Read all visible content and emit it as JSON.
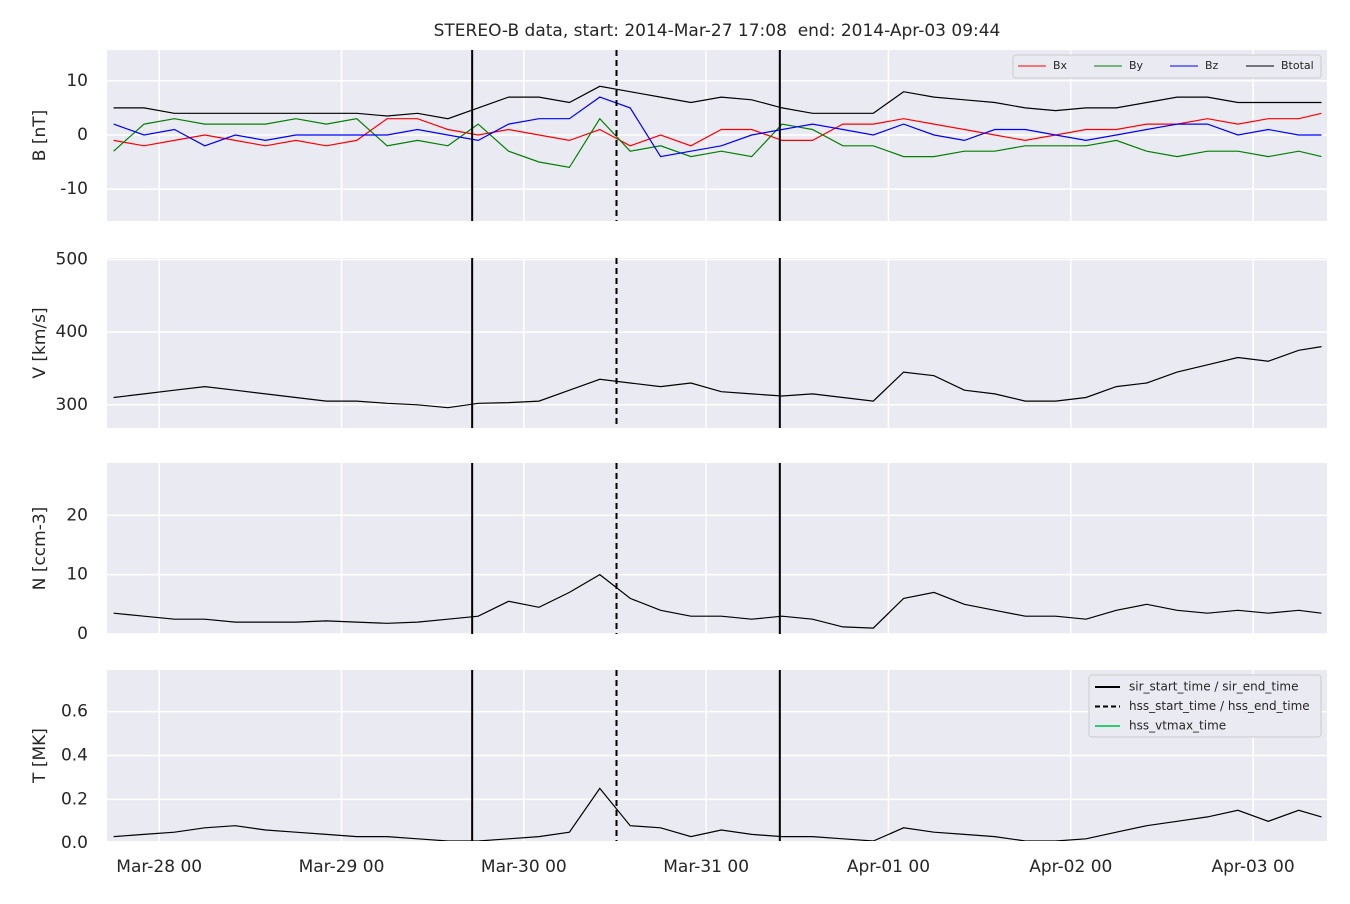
{
  "title": "STEREO-B data, start: 2014-Mar-27 17:08  end: 2014-Apr-03 09:44",
  "event_lines": [
    {
      "name": "sir_start_time / sir_end_time",
      "color": "#000000",
      "dash": "solid",
      "values": [
        41.2,
        81.7
      ]
    },
    {
      "name": "hss_start_time / hss_end_time",
      "color": "#000000",
      "dash": "dashed",
      "values": [
        60.2
      ]
    },
    {
      "name": "hss_vtmax_time",
      "color": "#2ecc71",
      "dash": "solid",
      "values": []
    }
  ],
  "chart_data": [
    {
      "type": "line",
      "ylabel": "B [nT]",
      "legend": "upper right",
      "grid": true,
      "x": [
        -6,
        -2,
        2,
        6,
        10,
        14,
        18,
        22,
        26,
        30,
        34,
        38,
        42,
        46,
        50,
        54,
        58,
        62,
        66,
        70,
        74,
        78,
        82,
        86,
        90,
        94,
        98,
        102,
        106,
        110,
        114,
        118,
        122,
        126,
        130,
        134,
        138,
        142,
        146,
        150,
        153
      ],
      "ylim": [
        -15.9,
        15.7
      ],
      "yticks": [
        -10,
        0,
        10
      ],
      "series": [
        {
          "name": "Bx",
          "color": "#ff0000",
          "values": [
            -1,
            -2,
            -1,
            0,
            -1,
            -2,
            -1,
            -2,
            -1,
            3,
            3,
            1,
            0,
            1,
            0,
            -1,
            1,
            -2,
            0,
            -2,
            1,
            1,
            -1,
            -1,
            2,
            2,
            3,
            2,
            1,
            0,
            -1,
            0,
            1,
            1,
            2,
            2,
            3,
            2,
            3,
            3,
            4
          ]
        },
        {
          "name": "By",
          "color": "#008000",
          "values": [
            -3,
            2,
            3,
            2,
            2,
            2,
            3,
            2,
            3,
            -2,
            -1,
            -2,
            2,
            -3,
            -5,
            -6,
            3,
            -3,
            -2,
            -4,
            -3,
            -4,
            2,
            1,
            -2,
            -2,
            -4,
            -4,
            -3,
            -3,
            -2,
            -2,
            -2,
            -1,
            -3,
            -4,
            -3,
            -3,
            -4,
            -3,
            -4
          ]
        },
        {
          "name": "Bz",
          "color": "#0000ff",
          "values": [
            2,
            0,
            1,
            -2,
            0,
            -1,
            0,
            0,
            0,
            0,
            1,
            0,
            -1,
            2,
            3,
            3,
            7,
            5,
            -4,
            -3,
            -2,
            0,
            1,
            2,
            1,
            0,
            2,
            0,
            -1,
            1,
            1,
            0,
            -1,
            0,
            1,
            2,
            2,
            0,
            1,
            0,
            0
          ]
        },
        {
          "name": "Btotal",
          "color": "#000000",
          "values": [
            5,
            5,
            4,
            4,
            4,
            4,
            4,
            4,
            4,
            3.5,
            4,
            3,
            5,
            7,
            7,
            6,
            9,
            8,
            7,
            6,
            7,
            6.5,
            5,
            4,
            4,
            4,
            8,
            7,
            6.5,
            6,
            5,
            4.5,
            5,
            5,
            6,
            7,
            7,
            6,
            6,
            6,
            6
          ]
        }
      ]
    },
    {
      "type": "line",
      "ylabel": "V [km/s]",
      "grid": true,
      "x": [
        -6,
        -2,
        2,
        6,
        10,
        14,
        18,
        22,
        26,
        30,
        34,
        38,
        42,
        46,
        50,
        54,
        58,
        62,
        66,
        70,
        74,
        78,
        82,
        86,
        90,
        94,
        98,
        102,
        106,
        110,
        114,
        118,
        122,
        126,
        130,
        134,
        138,
        142,
        146,
        150,
        153
      ],
      "ylim": [
        268,
        502
      ],
      "yticks": [
        300,
        400,
        500
      ],
      "series": [
        {
          "color": "#000000",
          "values": [
            310,
            315,
            320,
            325,
            320,
            315,
            310,
            305,
            305,
            302,
            300,
            296,
            302,
            303,
            305,
            320,
            335,
            330,
            325,
            330,
            318,
            315,
            312,
            315,
            310,
            305,
            345,
            340,
            320,
            315,
            305,
            305,
            310,
            325,
            330,
            345,
            355,
            365,
            360,
            375,
            380
          ]
        }
      ]
    },
    {
      "type": "line",
      "ylabel": "N [ccm-3]",
      "grid": true,
      "x": [
        -6,
        -2,
        2,
        6,
        10,
        14,
        18,
        22,
        26,
        30,
        34,
        38,
        42,
        46,
        50,
        54,
        58,
        62,
        66,
        70,
        74,
        78,
        82,
        86,
        90,
        94,
        98,
        102,
        106,
        110,
        114,
        118,
        122,
        126,
        130,
        134,
        138,
        142,
        146,
        150,
        153
      ],
      "ylim": [
        0,
        28.8
      ],
      "yticks": [
        0,
        10,
        20
      ],
      "series": [
        {
          "color": "#000000",
          "values": [
            3.5,
            3,
            2.5,
            2.5,
            2,
            2,
            2,
            2.2,
            2,
            1.8,
            2,
            2.5,
            3,
            5.5,
            4.5,
            7,
            10,
            6,
            4,
            3,
            3,
            2.5,
            3,
            2.5,
            1.2,
            1,
            6,
            7,
            5,
            4,
            3,
            3,
            2.5,
            4,
            5,
            4,
            3.5,
            4,
            3.5,
            4,
            3.5
          ]
        }
      ]
    },
    {
      "type": "line",
      "ylabel": "T [MK]",
      "grid": true,
      "legend": "upper right",
      "x": [
        -6,
        -2,
        2,
        6,
        10,
        14,
        18,
        22,
        26,
        30,
        34,
        38,
        42,
        46,
        50,
        54,
        58,
        62,
        66,
        70,
        74,
        78,
        82,
        86,
        90,
        94,
        98,
        102,
        106,
        110,
        114,
        118,
        122,
        126,
        130,
        134,
        138,
        142,
        146,
        150,
        153
      ],
      "xlim": [
        -6.87,
        153.73
      ],
      "xticks": [
        {
          "value": 0,
          "label": "Mar-28 00"
        },
        {
          "value": 24,
          "label": "Mar-29 00"
        },
        {
          "value": 48,
          "label": "Mar-30 00"
        },
        {
          "value": 72,
          "label": "Mar-31 00"
        },
        {
          "value": 96,
          "label": "Apr-01 00"
        },
        {
          "value": 120,
          "label": "Apr-02 00"
        },
        {
          "value": 144,
          "label": "Apr-03 00"
        }
      ],
      "ylim": [
        0.01,
        0.79
      ],
      "yticks": [
        {
          "value": 0,
          "label": "0.0"
        },
        {
          "value": 0.2,
          "label": "0.2"
        },
        {
          "value": 0.4,
          "label": "0.4"
        },
        {
          "value": 0.6,
          "label": "0.6"
        }
      ],
      "series": [
        {
          "color": "#000000",
          "values": [
            0.03,
            0.04,
            0.05,
            0.07,
            0.08,
            0.06,
            0.05,
            0.04,
            0.03,
            0.03,
            0.02,
            0.01,
            0.01,
            0.02,
            0.03,
            0.05,
            0.25,
            0.08,
            0.07,
            0.03,
            0.06,
            0.04,
            0.03,
            0.03,
            0.02,
            0.01,
            0.07,
            0.05,
            0.04,
            0.03,
            0.01,
            0.01,
            0.02,
            0.05,
            0.08,
            0.1,
            0.12,
            0.15,
            0.1,
            0.15,
            0.12
          ]
        }
      ]
    }
  ]
}
